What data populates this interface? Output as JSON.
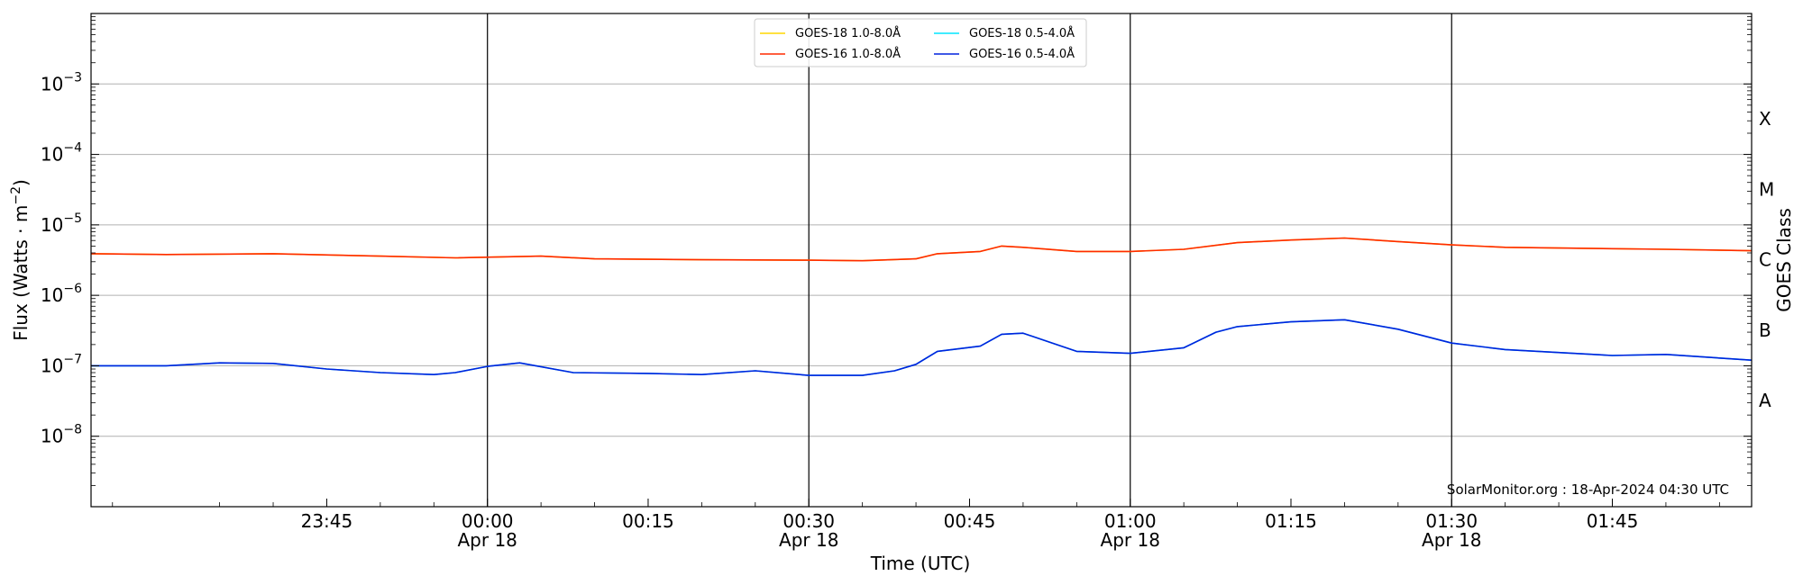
{
  "chart_data": {
    "type": "line",
    "xlabel": "Time (UTC)",
    "ylabel": "Flux (Watts · m",
    "ylabel_sup": "−2",
    "ylabel_end": ")",
    "right_label": "GOES Class",
    "scale": "log",
    "ylim": [
      1e-09,
      0.01
    ],
    "xlim": [
      "2024-04-17 23:23",
      "2024-04-18 01:58"
    ],
    "grid": "horizontal at decades, vertical lines at half-hours",
    "legend_position": "top-center",
    "y_ticks": [
      {
        "value": 1e-08,
        "base": "10",
        "exp": "−8"
      },
      {
        "value": 1e-07,
        "base": "10",
        "exp": "−7"
      },
      {
        "value": 1e-06,
        "base": "10",
        "exp": "−6"
      },
      {
        "value": 1e-05,
        "base": "10",
        "exp": "−5"
      },
      {
        "value": 0.0001,
        "base": "10",
        "exp": "−4"
      },
      {
        "value": 0.001,
        "base": "10",
        "exp": "−3"
      }
    ],
    "x_ticks": [
      {
        "time": "23:45",
        "label": "23:45",
        "date": ""
      },
      {
        "time": "00:00",
        "label": "00:00",
        "date": "Apr 18"
      },
      {
        "time": "00:15",
        "label": "00:15",
        "date": ""
      },
      {
        "time": "00:30",
        "label": "00:30",
        "date": "Apr 18"
      },
      {
        "time": "00:45",
        "label": "00:45",
        "date": ""
      },
      {
        "time": "01:00",
        "label": "01:00",
        "date": "Apr 18"
      },
      {
        "time": "01:15",
        "label": "01:15",
        "date": ""
      },
      {
        "time": "01:30",
        "label": "01:30",
        "date": "Apr 18"
      },
      {
        "time": "01:45",
        "label": "01:45",
        "date": ""
      }
    ],
    "goes_classes": [
      {
        "label": "X",
        "value": 0.00032
      },
      {
        "label": "M",
        "value": 3.2e-05
      },
      {
        "label": "C",
        "value": 3.2e-06
      },
      {
        "label": "B",
        "value": 3.2e-07
      },
      {
        "label": "A",
        "value": 3.2e-08
      }
    ],
    "series": [
      {
        "name": "GOES-18 1.0-8.0Å",
        "color": "#ffd700",
        "times": [
          "23:23",
          "23:30",
          "23:40",
          "23:50",
          "23:57",
          "00:05",
          "00:10",
          "00:20",
          "00:30",
          "00:35",
          "00:40",
          "00:42",
          "00:46",
          "00:48",
          "00:50",
          "00:55",
          "01:00",
          "01:05",
          "01:10",
          "01:15",
          "01:20",
          "01:25",
          "01:30",
          "01:35",
          "01:45",
          "01:50",
          "01:58"
        ],
        "values": [
          3.9e-06,
          3.8e-06,
          3.9e-06,
          3.6e-06,
          3.4e-06,
          3.6e-06,
          3.3e-06,
          3.2e-06,
          3.15e-06,
          3.1e-06,
          3.3e-06,
          3.9e-06,
          4.2e-06,
          5e-06,
          4.8e-06,
          4.2e-06,
          4.2e-06,
          4.5e-06,
          5.6e-06,
          6.1e-06,
          6.5e-06,
          5.8e-06,
          5.2e-06,
          4.8e-06,
          4.6e-06,
          4.5e-06,
          4.3e-06
        ]
      },
      {
        "name": "GOES-18 0.5-4.0Å",
        "color": "#00e5ff",
        "times": [
          "23:23",
          "23:30",
          "23:35",
          "23:40",
          "23:45",
          "23:50",
          "23:55",
          "23:57",
          "00:00",
          "00:03",
          "00:08",
          "00:15",
          "00:20",
          "00:25",
          "00:30",
          "00:35",
          "00:38",
          "00:40",
          "00:42",
          "00:46",
          "00:48",
          "00:50",
          "00:55",
          "01:00",
          "01:05",
          "01:08",
          "01:10",
          "01:15",
          "01:20",
          "01:25",
          "01:30",
          "01:35",
          "01:45",
          "01:50",
          "01:58"
        ],
        "values": [
          1e-07,
          1e-07,
          1.1e-07,
          1.08e-07,
          9e-08,
          8e-08,
          7.5e-08,
          8e-08,
          9.8e-08,
          1.1e-07,
          8e-08,
          7.8e-08,
          7.5e-08,
          8.5e-08,
          7.3e-08,
          7.3e-08,
          8.5e-08,
          1.05e-07,
          1.6e-07,
          1.9e-07,
          2.8e-07,
          2.9e-07,
          1.6e-07,
          1.5e-07,
          1.8e-07,
          3e-07,
          3.6e-07,
          4.2e-07,
          4.5e-07,
          3.3e-07,
          2.1e-07,
          1.7e-07,
          1.4e-07,
          1.45e-07,
          1.2e-07
        ]
      },
      {
        "name": "GOES-16 1.0-8.0Å",
        "color": "#ff2a00",
        "times": [
          "23:23",
          "23:30",
          "23:40",
          "23:50",
          "23:57",
          "00:05",
          "00:10",
          "00:20",
          "00:30",
          "00:35",
          "00:40",
          "00:42",
          "00:46",
          "00:48",
          "00:50",
          "00:55",
          "01:00",
          "01:05",
          "01:10",
          "01:15",
          "01:20",
          "01:25",
          "01:30",
          "01:35",
          "01:45",
          "01:50",
          "01:58"
        ],
        "values": [
          3.9e-06,
          3.8e-06,
          3.9e-06,
          3.6e-06,
          3.4e-06,
          3.6e-06,
          3.3e-06,
          3.2e-06,
          3.15e-06,
          3.1e-06,
          3.3e-06,
          3.9e-06,
          4.2e-06,
          5e-06,
          4.8e-06,
          4.2e-06,
          4.2e-06,
          4.5e-06,
          5.6e-06,
          6.1e-06,
          6.5e-06,
          5.8e-06,
          5.2e-06,
          4.8e-06,
          4.6e-06,
          4.5e-06,
          4.3e-06
        ]
      },
      {
        "name": "GOES-16 0.5-4.0Å",
        "color": "#0022dd",
        "times": [
          "23:23",
          "23:30",
          "23:35",
          "23:40",
          "23:45",
          "23:50",
          "23:55",
          "23:57",
          "00:00",
          "00:03",
          "00:08",
          "00:15",
          "00:20",
          "00:25",
          "00:30",
          "00:35",
          "00:38",
          "00:40",
          "00:42",
          "00:46",
          "00:48",
          "00:50",
          "00:55",
          "01:00",
          "01:05",
          "01:08",
          "01:10",
          "01:15",
          "01:20",
          "01:25",
          "01:30",
          "01:35",
          "01:45",
          "01:50",
          "01:58"
        ],
        "values": [
          1e-07,
          1e-07,
          1.1e-07,
          1.08e-07,
          9e-08,
          8e-08,
          7.5e-08,
          8e-08,
          9.8e-08,
          1.1e-07,
          8e-08,
          7.8e-08,
          7.5e-08,
          8.5e-08,
          7.3e-08,
          7.3e-08,
          8.5e-08,
          1.05e-07,
          1.6e-07,
          1.9e-07,
          2.8e-07,
          2.9e-07,
          1.6e-07,
          1.5e-07,
          1.8e-07,
          3e-07,
          3.6e-07,
          4.2e-07,
          4.5e-07,
          3.3e-07,
          2.1e-07,
          1.7e-07,
          1.4e-07,
          1.45e-07,
          1.2e-07
        ]
      }
    ],
    "watermark": "SolarMonitor.org : 18-Apr-2024 04:30 UTC"
  }
}
